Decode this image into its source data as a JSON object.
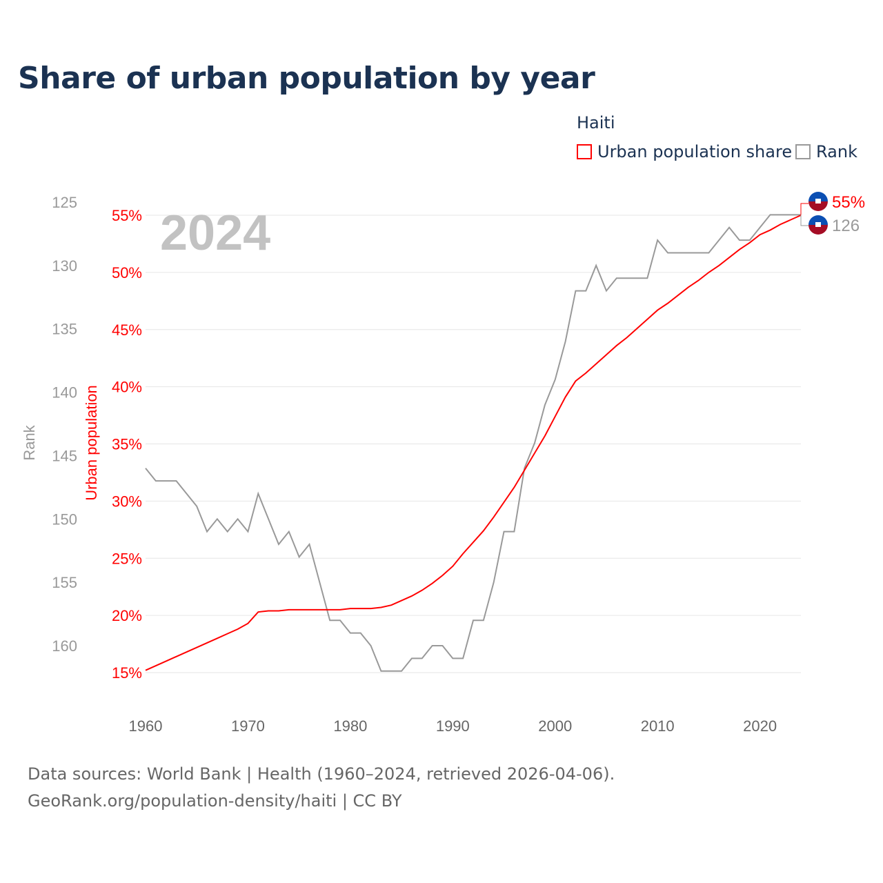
{
  "title": "Share of urban population by year",
  "legend": {
    "title": "Haiti",
    "items": [
      {
        "label": "Urban population share",
        "color": "#ff0000"
      },
      {
        "label": "Rank",
        "color": "#999999"
      }
    ]
  },
  "footer": {
    "line1": "Data sources: World Bank | Health (1960–2024, retrieved 2026-04-06).",
    "line2": "GeoRank.org/population-density/haiti | CC BY"
  },
  "chart_data": {
    "type": "line",
    "year_label": "2024",
    "x": [
      1960,
      1961,
      1962,
      1963,
      1964,
      1965,
      1966,
      1967,
      1968,
      1969,
      1970,
      1971,
      1972,
      1973,
      1974,
      1975,
      1976,
      1977,
      1978,
      1979,
      1980,
      1981,
      1982,
      1983,
      1984,
      1985,
      1986,
      1987,
      1988,
      1989,
      1990,
      1991,
      1992,
      1993,
      1994,
      1995,
      1996,
      1997,
      1998,
      1999,
      2000,
      2001,
      2002,
      2003,
      2004,
      2005,
      2006,
      2007,
      2008,
      2009,
      2010,
      2011,
      2012,
      2013,
      2014,
      2015,
      2016,
      2017,
      2018,
      2019,
      2020,
      2021,
      2022,
      2023,
      2024
    ],
    "series": [
      {
        "name": "Urban population share",
        "axis": "left",
        "color": "#ff0000",
        "values": [
          15.2,
          15.6,
          16.0,
          16.4,
          16.8,
          17.2,
          17.6,
          18.0,
          18.4,
          18.8,
          19.3,
          20.3,
          20.4,
          20.4,
          20.5,
          20.5,
          20.5,
          20.5,
          20.5,
          20.5,
          20.6,
          20.6,
          20.6,
          20.7,
          20.9,
          21.3,
          21.7,
          22.2,
          22.8,
          23.5,
          24.3,
          25.4,
          26.4,
          27.4,
          28.6,
          29.9,
          31.2,
          32.7,
          34.2,
          35.7,
          37.4,
          39.1,
          40.5,
          41.2,
          42.0,
          42.8,
          43.6,
          44.3,
          45.1,
          45.9,
          46.7,
          47.3,
          48.0,
          48.7,
          49.3,
          50.0,
          50.6,
          51.3,
          52.0,
          52.6,
          53.3,
          53.7,
          54.2,
          54.6,
          55.0
        ]
      },
      {
        "name": "Rank",
        "axis": "right",
        "color": "#999999",
        "values": [
          146,
          147,
          147,
          147,
          148,
          149,
          151,
          150,
          151,
          150,
          151,
          148,
          150,
          152,
          151,
          153,
          152,
          155,
          158,
          158,
          159,
          159,
          160,
          162,
          162,
          162,
          161,
          161,
          160,
          160,
          161,
          161,
          158,
          158,
          155,
          151,
          151,
          146,
          144,
          141,
          139,
          136,
          132,
          132,
          130,
          132,
          131,
          131,
          131,
          131,
          128,
          129,
          129,
          129,
          129,
          129,
          128,
          127,
          128,
          128,
          127,
          126,
          126,
          126,
          126
        ]
      }
    ],
    "y_left": {
      "label": "Urban population",
      "ticks": [
        "15%",
        "20%",
        "25%",
        "30%",
        "35%",
        "40%",
        "45%",
        "50%",
        "55%"
      ],
      "range": [
        15,
        55
      ]
    },
    "y_right": {
      "label": "Rank",
      "ticks": [
        "125",
        "130",
        "135",
        "140",
        "145",
        "150",
        "155",
        "160"
      ],
      "range": [
        125,
        160
      ],
      "inverted": true
    },
    "x_ticks": [
      "1960",
      "1970",
      "1980",
      "1990",
      "2000",
      "2010",
      "2020"
    ],
    "end_labels": [
      "55%",
      "126"
    ]
  }
}
